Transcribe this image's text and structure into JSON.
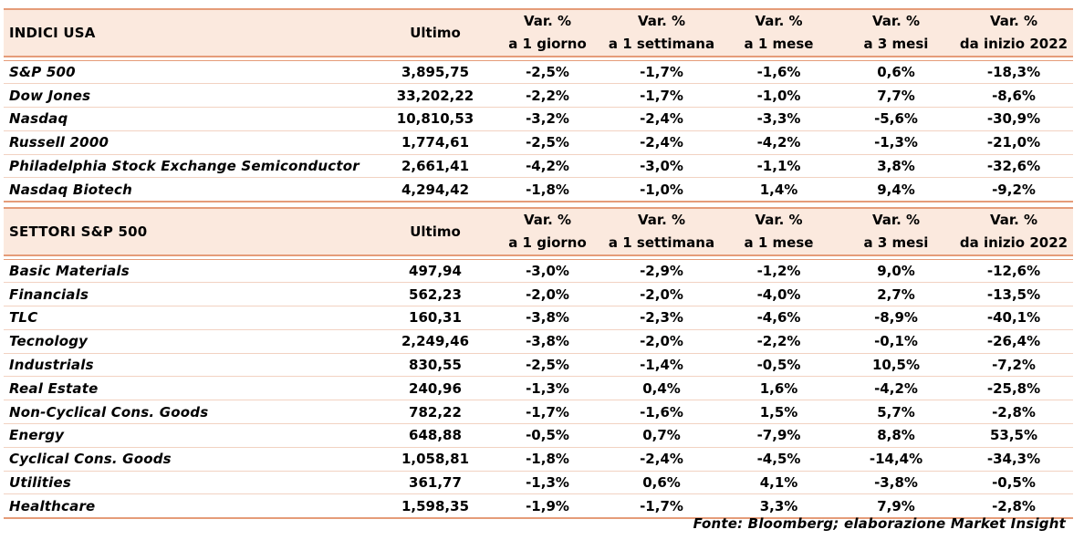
{
  "tables": [
    {
      "title": "INDICI USA",
      "headers": {
        "last": "Ultimo",
        "d1_top": "Var. %",
        "d1_bottom": "a 1 giorno",
        "w1_top": "Var. %",
        "w1_bottom": "a 1 settimana",
        "m1_top": "Var. %",
        "m1_bottom": "a 1 mese",
        "m3_top": "Var. %",
        "m3_bottom": "a 3 mesi",
        "ytd_top": "Var. %",
        "ytd_bottom": "da inizio 2022"
      },
      "rows": [
        {
          "name": "S&P 500",
          "last": "3,895,75",
          "d1": "-2,5%",
          "w1": "-1,7%",
          "m1": "-1,6%",
          "m3": "0,6%",
          "ytd": "-18,3%"
        },
        {
          "name": "Dow Jones",
          "last": "33,202,22",
          "d1": "-2,2%",
          "w1": "-1,7%",
          "m1": "-1,0%",
          "m3": "7,7%",
          "ytd": "-8,6%"
        },
        {
          "name": "Nasdaq",
          "last": "10,810,53",
          "d1": "-3,2%",
          "w1": "-2,4%",
          "m1": "-3,3%",
          "m3": "-5,6%",
          "ytd": "-30,9%"
        },
        {
          "name": "Russell 2000",
          "last": "1,774,61",
          "d1": "-2,5%",
          "w1": "-2,4%",
          "m1": "-4,2%",
          "m3": "-1,3%",
          "ytd": "-21,0%"
        },
        {
          "name": "Philadelphia Stock Exchange Semiconductor",
          "last": "2,661,41",
          "d1": "-4,2%",
          "w1": "-3,0%",
          "m1": "-1,1%",
          "m3": "3,8%",
          "ytd": "-32,6%"
        },
        {
          "name": "Nasdaq Biotech",
          "last": "4,294,42",
          "d1": "-1,8%",
          "w1": "-1,0%",
          "m1": "1,4%",
          "m3": "9,4%",
          "ytd": "-9,2%"
        }
      ]
    },
    {
      "title": "SETTORI S&P 500",
      "headers": {
        "last": "Ultimo",
        "d1_top": "Var. %",
        "d1_bottom": "a 1 giorno",
        "w1_top": "Var. %",
        "w1_bottom": "a 1 settimana",
        "m1_top": "Var. %",
        "m1_bottom": "a 1 mese",
        "m3_top": "Var. %",
        "m3_bottom": "a 3 mesi",
        "ytd_top": "Var. %",
        "ytd_bottom": "da inizio 2022"
      },
      "rows": [
        {
          "name": "Basic Materials",
          "last": "497,94",
          "d1": "-3,0%",
          "w1": "-2,9%",
          "m1": "-1,2%",
          "m3": "9,0%",
          "ytd": "-12,6%"
        },
        {
          "name": "Financials",
          "last": "562,23",
          "d1": "-2,0%",
          "w1": "-2,0%",
          "m1": "-4,0%",
          "m3": "2,7%",
          "ytd": "-13,5%"
        },
        {
          "name": "TLC",
          "last": "160,31",
          "d1": "-3,8%",
          "w1": "-2,3%",
          "m1": "-4,6%",
          "m3": "-8,9%",
          "ytd": "-40,1%"
        },
        {
          "name": "Tecnology",
          "last": "2,249,46",
          "d1": "-3,8%",
          "w1": "-2,0%",
          "m1": "-2,2%",
          "m3": "-0,1%",
          "ytd": "-26,4%"
        },
        {
          "name": "Industrials",
          "last": "830,55",
          "d1": "-2,5%",
          "w1": "-1,4%",
          "m1": "-0,5%",
          "m3": "10,5%",
          "ytd": "-7,2%"
        },
        {
          "name": "Real Estate",
          "last": "240,96",
          "d1": "-1,3%",
          "w1": "0,4%",
          "m1": "1,6%",
          "m3": "-4,2%",
          "ytd": "-25,8%"
        },
        {
          "name": "Non-Cyclical Cons. Goods",
          "last": "782,22",
          "d1": "-1,7%",
          "w1": "-1,6%",
          "m1": "1,5%",
          "m3": "5,7%",
          "ytd": "-2,8%"
        },
        {
          "name": "Energy",
          "last": "648,88",
          "d1": "-0,5%",
          "w1": "0,7%",
          "m1": "-7,9%",
          "m3": "8,8%",
          "ytd": "53,5%"
        },
        {
          "name": "Cyclical Cons. Goods",
          "last": "1,058,81",
          "d1": "-1,8%",
          "w1": "-2,4%",
          "m1": "-4,5%",
          "m3": "-14,4%",
          "ytd": "-34,3%"
        },
        {
          "name": "Utilities",
          "last": "361,77",
          "d1": "-1,3%",
          "w1": "0,6%",
          "m1": "4,1%",
          "m3": "-3,8%",
          "ytd": "-0,5%"
        },
        {
          "name": "Healthcare",
          "last": "1,598,35",
          "d1": "-1,9%",
          "w1": "-1,7%",
          "m1": "3,3%",
          "m3": "7,9%",
          "ytd": "-2,8%"
        }
      ]
    }
  ],
  "source": "Fonte: Bloomberg; elaborazione Market Insight",
  "colors": {
    "header_bg": "#fbe9de",
    "rule": "#e59c79"
  }
}
